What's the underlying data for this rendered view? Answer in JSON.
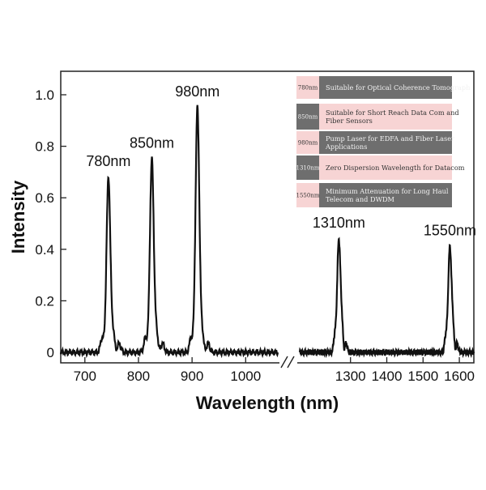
{
  "chart_data": {
    "type": "line",
    "title": "",
    "xlabel": "Wavelength (nm)",
    "ylabel": "Intensity",
    "ylim": [
      0,
      1.05
    ],
    "grid": false,
    "x_broken_axis": true,
    "x_segments": [
      {
        "xlim": [
          655,
          1060
        ],
        "ticks": [
          700,
          800,
          900,
          1000
        ]
      },
      {
        "xlim": [
          1160,
          1640
        ],
        "ticks": [
          1300,
          1400,
          1500,
          1600
        ]
      }
    ],
    "y_ticks": [
      "0",
      "0.2",
      "0.4",
      "0.6",
      "0.8",
      "1.0"
    ],
    "y_tick_values": [
      0,
      0.2,
      0.4,
      0.6,
      0.8,
      1.0
    ],
    "peaks": [
      {
        "label": "780nm",
        "x": 744,
        "y": 0.68
      },
      {
        "label": "850nm",
        "x": 825,
        "y": 0.75
      },
      {
        "label": "980nm",
        "x": 910,
        "y": 0.95
      },
      {
        "label": "1310nm",
        "x": 1268,
        "y": 0.44
      },
      {
        "label": "1550nm",
        "x": 1574,
        "y": 0.41
      }
    ],
    "legend_position": "top-right",
    "legend": [
      {
        "tag": "780nm",
        "text": "Suitable for Optical Coherence Tomograph"
      },
      {
        "tag": "850nm",
        "text": "Suitable for Short Reach Data Com and Fiber Sensors"
      },
      {
        "tag": "980nm",
        "text": "Pump Laser for EDFA and Fiber Laser Applications"
      },
      {
        "tag": "1310nm",
        "text": "Zero Dispersion Wavelength for Datacom"
      },
      {
        "tag": "1550nm",
        "text": "Minimum Attenuation for Long Haul Telecom and DWDM"
      }
    ],
    "colors": {
      "line": "#111111",
      "legend_pink": "#f7d4d4",
      "legend_gray": "#6e6e6e"
    }
  }
}
